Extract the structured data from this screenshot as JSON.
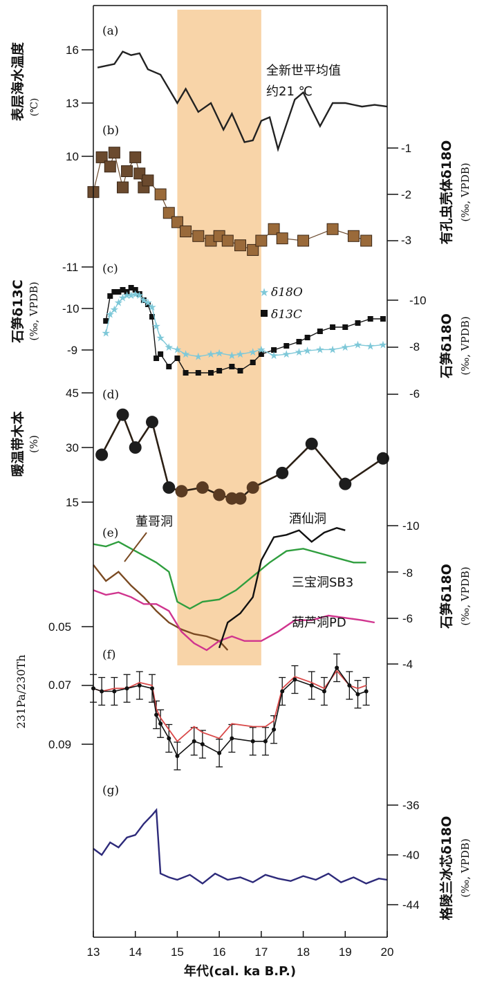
{
  "chart_data": {
    "type": "line",
    "xlabel": "年代(cal. ka B.P.)",
    "xlim": [
      13,
      20
    ],
    "xticks": [
      "13",
      "14",
      "15",
      "16",
      "17",
      "18",
      "19",
      "20"
    ],
    "highlight": {
      "x_from": 15,
      "x_to": 17,
      "color": "#f8d4a8"
    },
    "panels": [
      {
        "id": "a",
        "tag": "(a)",
        "ylabel": "表层海水温度",
        "yunit": "(℃)",
        "yticks": [
          "16",
          "13",
          "10"
        ],
        "annotation_line1": "全新世平均值",
        "annotation_line2": "约21 ℃",
        "series": [
          {
            "name": "SST",
            "color": "#222222",
            "x": [
              13.1,
              13.5,
              13.7,
              13.9,
              14.1,
              14.3,
              14.6,
              15.0,
              15.2,
              15.5,
              15.8,
              16.1,
              16.3,
              16.6,
              16.8,
              17.0,
              17.2,
              17.4,
              17.8,
              18.0,
              18.4,
              18.7,
              19.0,
              19.4,
              19.7,
              20.0
            ],
            "y": [
              15.0,
              15.2,
              15.9,
              15.7,
              15.8,
              14.9,
              14.6,
              13.0,
              13.8,
              12.5,
              13.0,
              11.5,
              12.4,
              10.8,
              10.9,
              12.0,
              12.2,
              10.4,
              13.2,
              13.6,
              11.7,
              13.0,
              13.0,
              12.8,
              12.9,
              12.8
            ]
          }
        ]
      },
      {
        "id": "b",
        "tag": "(b)",
        "ylabel": "有孔虫壳体δ18O",
        "yunit": "(‰, VPDB)",
        "yticks": [
          "-1",
          "-2",
          "-3"
        ],
        "series": [
          {
            "name": "有孔虫 δ18O",
            "color": "#6b4a2e",
            "x": [
              13.0,
              13.2,
              13.4,
              13.5,
              13.7,
              13.8,
              14.0,
              14.1,
              14.2,
              14.3,
              14.6,
              14.8,
              15.0,
              15.2,
              15.5,
              15.8,
              16.0,
              16.2,
              16.5,
              16.8,
              17.0,
              17.3,
              17.5,
              18.0,
              18.7,
              19.2,
              19.5
            ],
            "y": [
              -1.95,
              -1.2,
              -1.4,
              -1.1,
              -1.85,
              -1.5,
              -1.2,
              -1.55,
              -1.85,
              -1.7,
              -2.0,
              -2.4,
              -2.6,
              -2.8,
              -2.9,
              -3.0,
              -2.9,
              -3.0,
              -3.1,
              -3.2,
              -3.0,
              -2.75,
              -2.95,
              -3.0,
              -2.75,
              -2.9,
              -3.0
            ]
          }
        ]
      },
      {
        "id": "c",
        "tag": "(c)",
        "ylabel": "石笋δ13C",
        "yunit": "(‰, VPDB)",
        "yticks": [
          "-11",
          "-10",
          "-9"
        ],
        "yticks_right": [
          "-10",
          "-8",
          "-6"
        ],
        "ylabel_right": "石笋δ18O",
        "legend": [
          "δ18O",
          "δ13C"
        ],
        "series": [
          {
            "name": "δ13C",
            "color": "#111111",
            "x": [
              13.3,
              13.4,
              13.5,
              13.6,
              13.7,
              13.8,
              13.9,
              14.0,
              14.1,
              14.2,
              14.3,
              14.4,
              14.5,
              14.6,
              14.8,
              15.0,
              15.2,
              15.5,
              15.8,
              16.0,
              16.3,
              16.5,
              16.8,
              17.0,
              17.3,
              17.6,
              17.9,
              18.1,
              18.4,
              18.7,
              19.0,
              19.3,
              19.6,
              19.9
            ],
            "y": [
              -9.7,
              -10.3,
              -10.4,
              -10.4,
              -10.45,
              -10.4,
              -10.5,
              -10.45,
              -10.35,
              -10.2,
              -10.1,
              -9.8,
              -8.8,
              -8.9,
              -8.6,
              -8.8,
              -8.45,
              -8.45,
              -8.45,
              -8.5,
              -8.6,
              -8.5,
              -8.7,
              -8.9,
              -9.0,
              -9.1,
              -9.2,
              -9.3,
              -9.45,
              -9.55,
              -9.55,
              -9.65,
              -9.75,
              -9.75
            ]
          },
          {
            "name": "δ18O",
            "color": "#7ec8d8",
            "x": [
              13.3,
              13.4,
              13.5,
              13.6,
              13.7,
              13.8,
              13.9,
              14.0,
              14.1,
              14.2,
              14.3,
              14.4,
              14.5,
              14.6,
              14.8,
              15.0,
              15.2,
              15.5,
              15.8,
              16.0,
              16.3,
              16.5,
              16.8,
              17.0,
              17.3,
              17.6,
              17.9,
              18.1,
              18.4,
              18.7,
              19.0,
              19.3,
              19.6,
              19.9
            ],
            "y": [
              -8.6,
              -9.4,
              -9.6,
              -9.9,
              -10.1,
              -10.2,
              -10.2,
              -10.25,
              -10.2,
              -10.0,
              -9.9,
              -9.7,
              -8.9,
              -8.4,
              -8.0,
              -7.9,
              -7.7,
              -7.6,
              -7.7,
              -7.75,
              -7.65,
              -7.7,
              -7.8,
              -7.9,
              -7.65,
              -7.7,
              -7.8,
              -7.85,
              -7.9,
              -7.9,
              -8.0,
              -8.1,
              -8.05,
              -8.1
            ]
          }
        ]
      },
      {
        "id": "d",
        "tag": "(d)",
        "ylabel": "暖温带木本",
        "yunit": "(%)",
        "yticks": [
          "45",
          "30",
          "15"
        ],
        "series": [
          {
            "name": "暖温带木本",
            "color": "#2b1f14",
            "x": [
              13.2,
              13.7,
              14.0,
              14.4,
              14.8,
              15.1,
              15.6,
              16.0,
              16.3,
              16.5,
              16.8,
              17.5,
              18.2,
              19.0,
              19.9
            ],
            "y": [
              28,
              39,
              30,
              37,
              19,
              18,
              19,
              17,
              16,
              16,
              19,
              23,
              31,
              20,
              27
            ]
          }
        ]
      },
      {
        "id": "e",
        "tag": "(e)",
        "ylabel_right": "石笋δ18O",
        "yunit_right": "(‰, VPDB)",
        "yticks_right": [
          "-10",
          "-8",
          "-6",
          "-4"
        ],
        "series": [
          {
            "name": "董哥洞",
            "color": "#7a4a22",
            "x": [
              13.0,
              13.3,
              13.6,
              13.9,
              14.2,
              14.5,
              14.8,
              15.1,
              15.4,
              15.7,
              16.0,
              16.2
            ],
            "y": [
              -8.3,
              -7.6,
              -8.0,
              -7.4,
              -6.9,
              -6.3,
              -5.8,
              -5.5,
              -5.3,
              -5.2,
              -5.0,
              -4.6
            ]
          },
          {
            "name": "三宝洞SB3",
            "color": "#2f9e3e",
            "x": [
              13.0,
              13.3,
              13.6,
              13.9,
              14.2,
              14.5,
              14.8,
              15.0,
              15.3,
              15.6,
              16.0,
              16.4,
              16.8,
              17.2,
              17.6,
              18.0,
              18.4,
              18.8,
              19.2,
              19.5
            ],
            "y": [
              -9.2,
              -9.1,
              -9.3,
              -9.0,
              -8.7,
              -8.4,
              -8.0,
              -6.7,
              -6.4,
              -6.7,
              -6.8,
              -7.2,
              -7.8,
              -8.4,
              -8.9,
              -9.0,
              -8.8,
              -8.6,
              -8.4,
              -8.4
            ]
          },
          {
            "name": "葫芦洞PD",
            "color": "#d0348e",
            "x": [
              13.0,
              13.3,
              13.6,
              13.9,
              14.2,
              14.5,
              14.8,
              15.1,
              15.4,
              15.7,
              16.0,
              16.3,
              16.6,
              17.0,
              17.4,
              17.8,
              18.2,
              18.6,
              19.0,
              19.4,
              19.7
            ],
            "y": [
              -7.2,
              -7.0,
              -7.1,
              -6.9,
              -6.6,
              -6.6,
              -6.3,
              -5.4,
              -4.9,
              -4.6,
              -5.0,
              -5.2,
              -5.0,
              -5.0,
              -5.4,
              -5.9,
              -5.9,
              -6.1,
              -6.0,
              -5.9,
              -5.8
            ]
          },
          {
            "name": "酒仙洞",
            "color": "#111111",
            "x": [
              16.0,
              16.2,
              16.5,
              16.8,
              17.0,
              17.3,
              17.6,
              17.9,
              18.2,
              18.5,
              18.8,
              19.0
            ],
            "y": [
              -4.7,
              -5.8,
              -6.2,
              -6.9,
              -8.5,
              -9.5,
              -9.6,
              -9.8,
              -9.3,
              -9.7,
              -9.9,
              -9.8
            ]
          }
        ],
        "labels": [
          "董哥洞",
          "酒仙洞",
          "三宝洞SB3",
          "葫芦洞PD"
        ]
      },
      {
        "id": "f",
        "tag": "(f)",
        "ylabel": "231Pa/230Th",
        "yticks": [
          "0.05",
          "0.07",
          "0.09"
        ],
        "series": [
          {
            "name": "Pa/Th",
            "color": "#111111",
            "x": [
              13.0,
              13.2,
              13.5,
              13.8,
              14.1,
              14.4,
              14.5,
              14.6,
              14.8,
              15.0,
              15.4,
              15.6,
              16.0,
              16.3,
              16.8,
              17.1,
              17.3,
              17.5,
              17.8,
              18.2,
              18.5,
              18.8,
              19.1,
              19.3,
              19.5
            ],
            "y": [
              0.071,
              0.072,
              0.072,
              0.071,
              0.07,
              0.071,
              0.08,
              0.083,
              0.088,
              0.094,
              0.089,
              0.09,
              0.093,
              0.088,
              0.089,
              0.089,
              0.085,
              0.072,
              0.068,
              0.07,
              0.072,
              0.064,
              0.07,
              0.073,
              0.072
            ]
          },
          {
            "name": "Pa/Th (corrected)",
            "color": "#d94848",
            "x": [
              13.0,
              13.2,
              13.5,
              13.8,
              14.1,
              14.4,
              14.5,
              14.6,
              14.8,
              15.0,
              15.4,
              15.6,
              16.0,
              16.3,
              16.8,
              17.1,
              17.3,
              17.5,
              17.8,
              18.2,
              18.5,
              18.8,
              19.1,
              19.3,
              19.5
            ],
            "y": [
              0.071,
              0.072,
              0.071,
              0.071,
              0.069,
              0.07,
              0.078,
              0.081,
              0.085,
              0.089,
              0.084,
              0.086,
              0.088,
              0.083,
              0.084,
              0.084,
              0.082,
              0.071,
              0.067,
              0.069,
              0.071,
              0.065,
              0.07,
              0.071,
              0.07
            ]
          }
        ]
      },
      {
        "id": "g",
        "tag": "(g)",
        "ylabel_right": "格陵兰冰芯δ18O",
        "yunit_right": "(‰, VPDB)",
        "yticks_right": [
          "-36",
          "-40",
          "-44"
        ],
        "series": [
          {
            "name": "格陵兰冰芯 δ18O",
            "color": "#2d2a7a",
            "x": [
              13.0,
              13.2,
              13.4,
              13.6,
              13.8,
              14.0,
              14.2,
              14.4,
              14.5,
              14.6,
              14.8,
              15.0,
              15.3,
              15.6,
              15.9,
              16.2,
              16.5,
              16.8,
              17.1,
              17.4,
              17.7,
              18.0,
              18.3,
              18.6,
              18.9,
              19.2,
              19.5,
              19.8,
              20.0
            ],
            "y": [
              -39.5,
              -40.0,
              -39.0,
              -39.4,
              -38.6,
              -38.4,
              -37.5,
              -36.8,
              -36.4,
              -41.5,
              -41.8,
              -42.0,
              -41.6,
              -42.3,
              -41.5,
              -42.0,
              -41.8,
              -42.2,
              -41.6,
              -41.9,
              -42.1,
              -41.7,
              -42.0,
              -41.5,
              -42.2,
              -41.8,
              -42.3,
              -41.9,
              -42.0
            ]
          }
        ]
      }
    ]
  }
}
